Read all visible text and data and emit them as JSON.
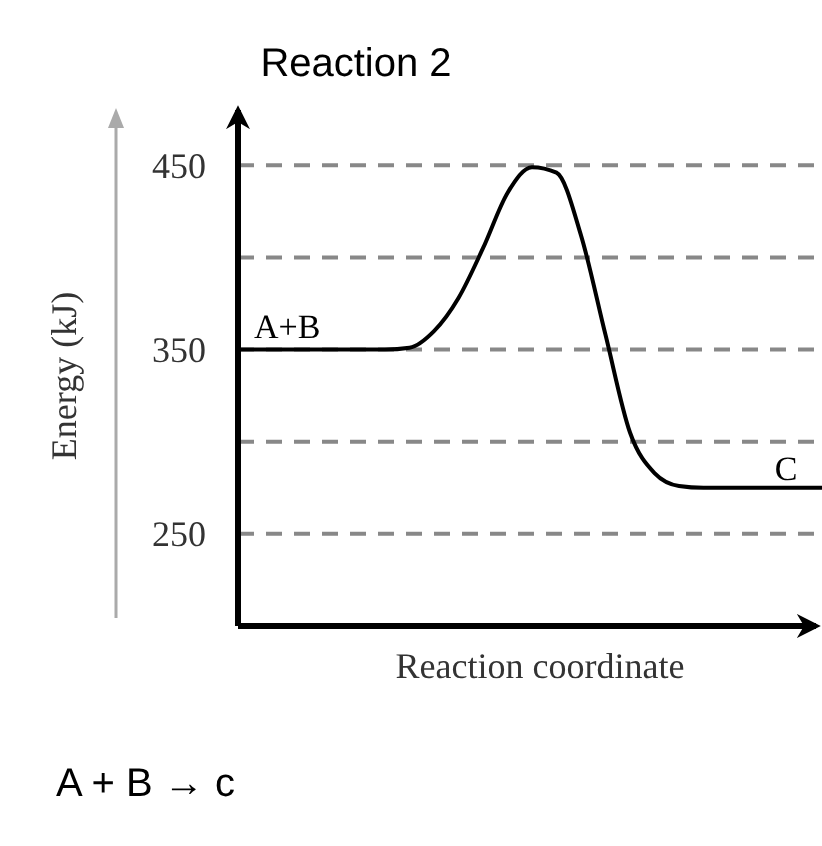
{
  "chart_data": {
    "type": "line",
    "title": "Reaction 2",
    "xlabel": "Reaction coordinate",
    "ylabel": "Energy (kJ)",
    "categories": [
      null,
      null,
      null,
      null,
      null,
      null,
      null,
      null,
      null,
      null,
      null,
      null,
      null,
      null,
      null,
      null,
      null,
      null,
      null,
      null,
      null,
      null,
      null,
      null,
      null
    ],
    "series": [
      {
        "color": "#000000",
        "values": [
          350,
          350,
          350,
          350,
          350,
          350,
          350,
          351,
          360,
          378,
          405,
          435,
          449,
          446,
          412,
          358,
          305,
          283,
          276,
          275,
          275,
          275,
          275,
          275,
          275
        ]
      }
    ],
    "ylim": [
      200,
      480
    ],
    "yticks": [
      250,
      {
        "value": 300,
        "label": null
      },
      350,
      {
        "value": 400,
        "label": null
      },
      450
    ],
    "grid": "y",
    "marker": "none",
    "line_style": "solid",
    "annotations": [
      "A+B",
      "C",
      "A + B → c"
    ]
  }
}
